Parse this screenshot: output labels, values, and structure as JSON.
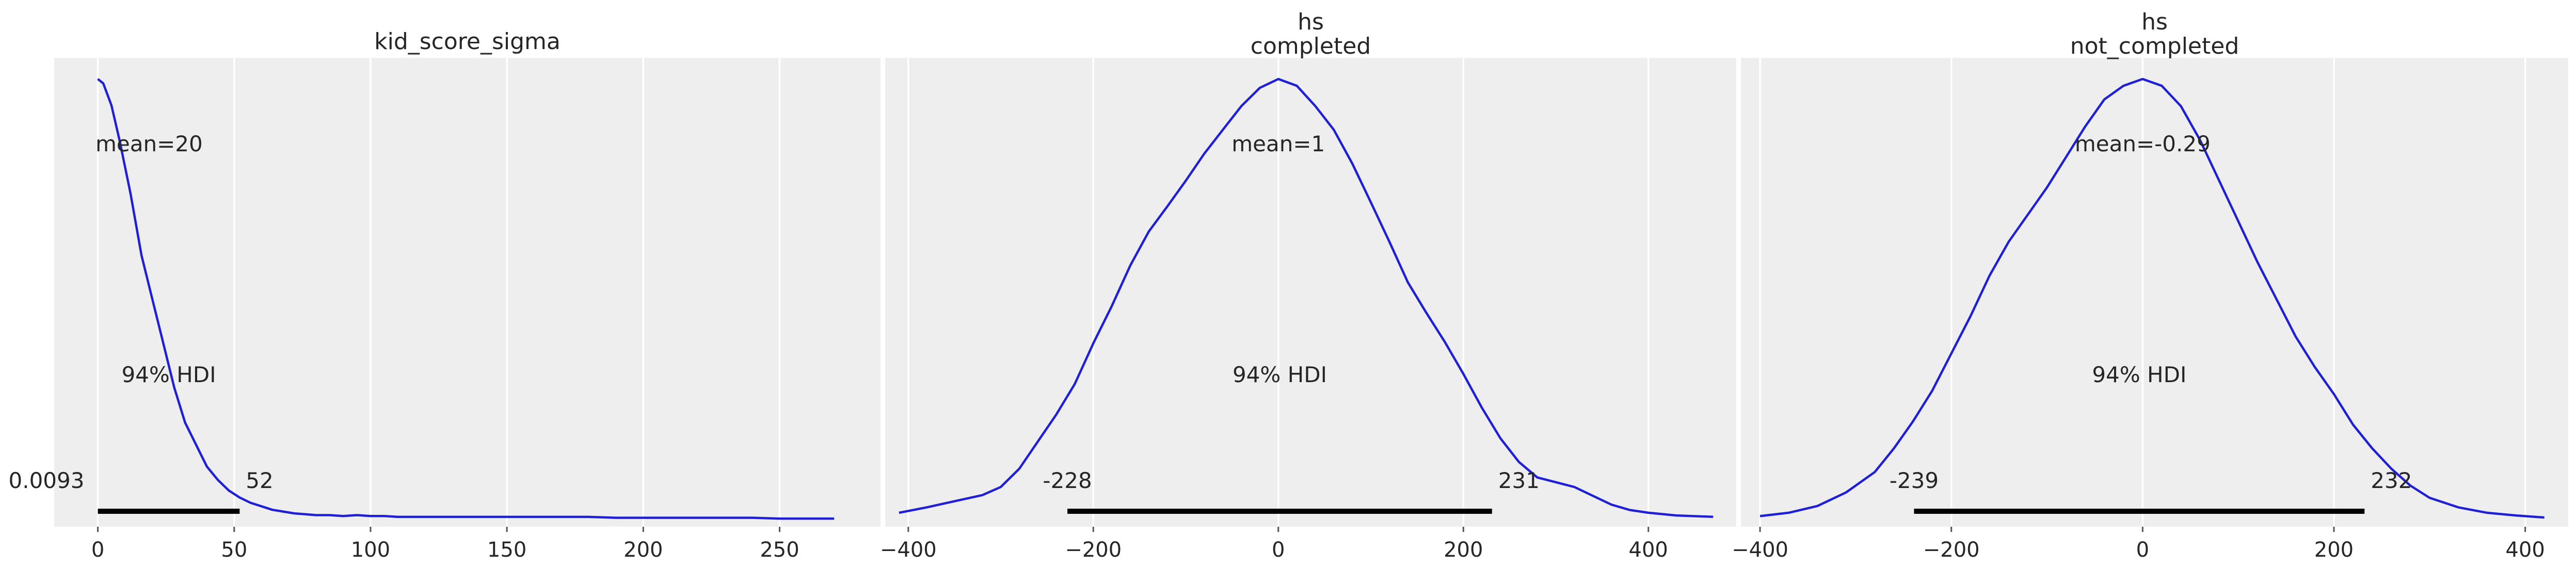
{
  "chart_data": [
    {
      "type": "area",
      "title": [
        "kid_score_sigma"
      ],
      "mean_label": "mean=20",
      "hdi_label": "94% HDI",
      "hdi": {
        "low": 0.0093,
        "high": 52,
        "low_label": "0.0093",
        "high_label": "52"
      },
      "xlim": [
        -16,
        287
      ],
      "xticks": [
        0,
        50,
        100,
        150,
        200,
        250
      ],
      "tick_labels": [
        "0",
        "50",
        "100",
        "150",
        "200",
        "250"
      ],
      "grid": true,
      "density": {
        "x": [
          0,
          2,
          5,
          8,
          12,
          16,
          20,
          24,
          28,
          32,
          36,
          40,
          44,
          48,
          52,
          56,
          60,
          64,
          68,
          72,
          76,
          80,
          85,
          90,
          95,
          100,
          105,
          110,
          120,
          130,
          140,
          150,
          160,
          170,
          180,
          190,
          200,
          210,
          220,
          230,
          240,
          250,
          260,
          270
        ],
        "y": [
          0.05,
          0.0495,
          0.047,
          0.043,
          0.037,
          0.03,
          0.025,
          0.02,
          0.015,
          0.011,
          0.0085,
          0.006,
          0.0045,
          0.0033,
          0.0025,
          0.0019,
          0.0015,
          0.0011,
          0.0009,
          0.0007,
          0.0006,
          0.0005,
          0.0005,
          0.0004,
          0.0005,
          0.0004,
          0.0004,
          0.0003,
          0.0003,
          0.0003,
          0.0003,
          0.0003,
          0.0003,
          0.0003,
          0.0003,
          0.0002,
          0.0002,
          0.0002,
          0.0002,
          0.0002,
          0.0002,
          0.0001,
          0.0001,
          0.0001
        ]
      }
    },
    {
      "type": "area",
      "title": [
        "hs",
        "completed"
      ],
      "mean_label": "mean=1",
      "hdi_label": "94% HDI",
      "hdi": {
        "low": -228,
        "high": 231,
        "low_label": "-228",
        "high_label": "231"
      },
      "xlim": [
        -425,
        495
      ],
      "xticks": [
        -400,
        -200,
        0,
        200,
        400
      ],
      "tick_labels": [
        "−400",
        "−200",
        "0",
        "200",
        "400"
      ],
      "grid": true,
      "density": {
        "x": [
          -410,
          -380,
          -350,
          -320,
          -300,
          -280,
          -260,
          -240,
          -220,
          -200,
          -180,
          -160,
          -140,
          -120,
          -100,
          -80,
          -60,
          -40,
          -20,
          0,
          20,
          40,
          60,
          80,
          100,
          120,
          140,
          160,
          180,
          200,
          220,
          240,
          260,
          280,
          300,
          320,
          340,
          360,
          380,
          400,
          430,
          470
        ],
        "y": [
          0.0001,
          0.00018,
          0.00027,
          0.00036,
          0.00048,
          0.00075,
          0.00115,
          0.00155,
          0.002,
          0.0026,
          0.00315,
          0.00375,
          0.00425,
          0.00462,
          0.005,
          0.0054,
          0.00575,
          0.0061,
          0.00637,
          0.0065,
          0.0064,
          0.0061,
          0.00575,
          0.00525,
          0.00468,
          0.0041,
          0.0035,
          0.00305,
          0.00262,
          0.00215,
          0.00165,
          0.0012,
          0.00085,
          0.00062,
          0.00055,
          0.00048,
          0.00035,
          0.00022,
          0.00014,
          0.0001,
          6e-05,
          4e-05
        ]
      }
    },
    {
      "type": "area",
      "title": [
        "hs",
        "not_completed"
      ],
      "mean_label": "mean=-0.29",
      "hdi_label": "94% HDI",
      "hdi": {
        "low": -239,
        "high": 232,
        "low_label": "-239",
        "high_label": "232"
      },
      "xlim": [
        -420,
        445
      ],
      "xticks": [
        -400,
        -200,
        0,
        200,
        400
      ],
      "tick_labels": [
        "−400",
        "−200",
        "0",
        "200",
        "400"
      ],
      "grid": true,
      "density": {
        "x": [
          -400,
          -370,
          -340,
          -310,
          -280,
          -260,
          -240,
          -220,
          -200,
          -180,
          -160,
          -140,
          -120,
          -100,
          -80,
          -60,
          -40,
          -20,
          0,
          20,
          40,
          60,
          80,
          100,
          120,
          140,
          160,
          180,
          200,
          220,
          240,
          260,
          280,
          300,
          330,
          360,
          390,
          420
        ],
        "y": [
          5e-05,
          0.0001,
          0.0002,
          0.0004,
          0.0007,
          0.00105,
          0.00145,
          0.0019,
          0.00245,
          0.003,
          0.0036,
          0.0041,
          0.0045,
          0.0049,
          0.00535,
          0.0058,
          0.0062,
          0.0064,
          0.0065,
          0.0064,
          0.0061,
          0.0056,
          0.005,
          0.0044,
          0.0038,
          0.00325,
          0.0027,
          0.00225,
          0.00185,
          0.0014,
          0.00105,
          0.00075,
          0.0005,
          0.00032,
          0.00018,
          0.0001,
          6e-05,
          3e-05
        ]
      }
    }
  ]
}
